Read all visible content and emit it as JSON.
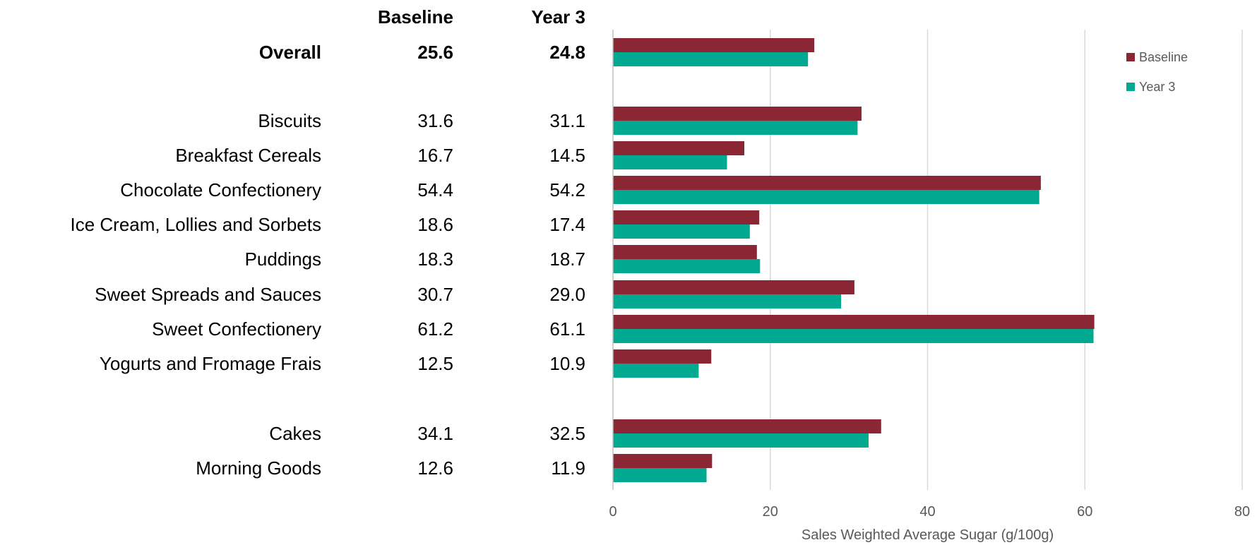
{
  "chart_data": {
    "type": "bar",
    "orientation": "horizontal",
    "table_headers": [
      "Baseline",
      "Year 3"
    ],
    "categories": [
      "Overall",
      "Biscuits",
      "Breakfast Cereals",
      "Chocolate Confectionery",
      "Ice Cream, Lollies and Sorbets",
      "Puddings",
      "Sweet Spreads and Sauces",
      "Sweet Confectionery",
      "Yogurts and Fromage Frais",
      "Cakes",
      "Morning Goods"
    ],
    "bold_categories": [
      "Overall"
    ],
    "series": [
      {
        "name": "Baseline",
        "color": "#8B2634",
        "values": [
          25.6,
          31.6,
          16.7,
          54.4,
          18.6,
          18.3,
          30.7,
          61.2,
          12.5,
          34.1,
          12.6
        ],
        "labels": [
          "25.6",
          "31.6",
          "16.7",
          "54.4",
          "18.6",
          "18.3",
          "30.7",
          "61.2",
          "12.5",
          "34.1",
          "12.6"
        ]
      },
      {
        "name": "Year 3",
        "color": "#00A98F",
        "values": [
          24.8,
          31.1,
          14.5,
          54.2,
          17.4,
          18.7,
          29.0,
          61.1,
          10.9,
          32.5,
          11.9
        ],
        "labels": [
          "24.8",
          "31.1",
          "14.5",
          "54.2",
          "17.4",
          "18.7",
          "29.0",
          "61.1",
          "10.9",
          "32.5",
          "11.9"
        ]
      }
    ],
    "xlabel": "Sales Weighted Average Sugar (g/100g)",
    "ylabel": "",
    "xlim": [
      0,
      80
    ],
    "x_ticks": [
      "0",
      "20",
      "40",
      "60",
      "80"
    ],
    "grid": "vertical",
    "legend_position": "top-right"
  }
}
